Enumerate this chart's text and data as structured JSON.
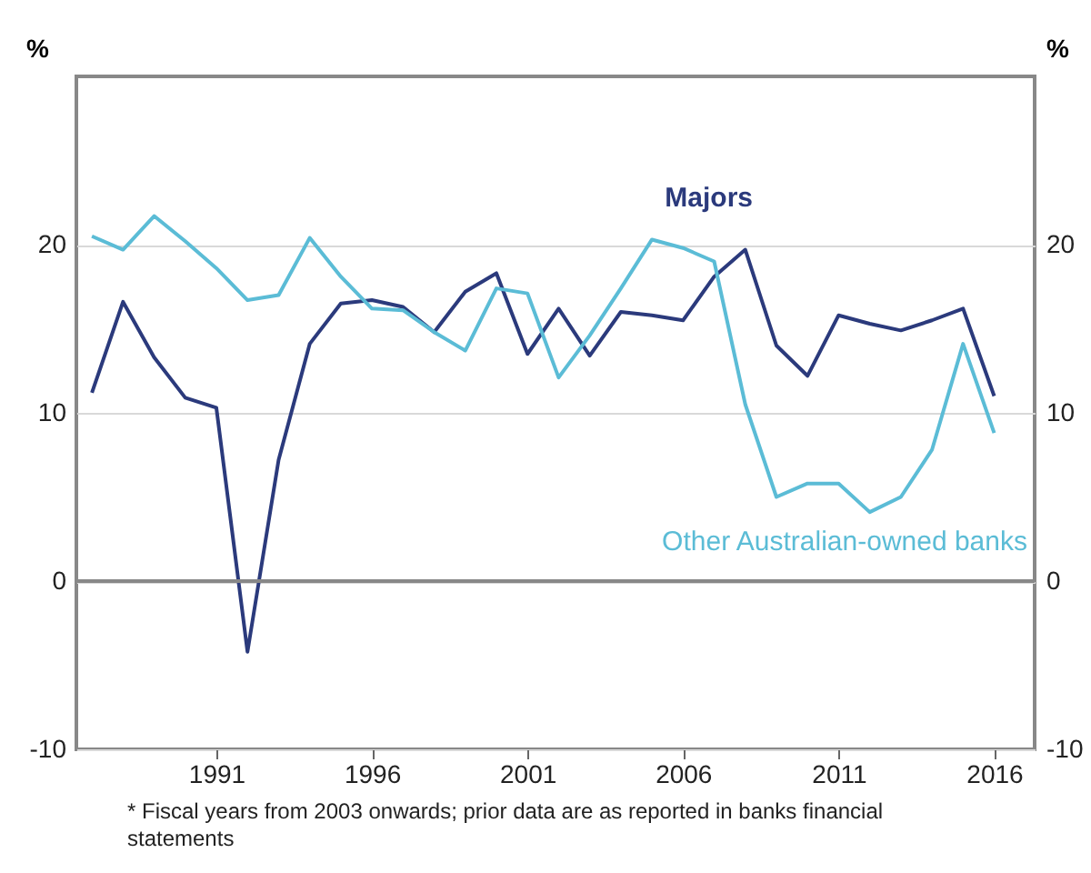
{
  "chart_data": {
    "type": "line",
    "x": [
      1987,
      1988,
      1989,
      1990,
      1991,
      1992,
      1993,
      1994,
      1995,
      1996,
      1997,
      1998,
      1999,
      2000,
      2001,
      2002,
      2003,
      2004,
      2005,
      2006,
      2007,
      2008,
      2009,
      2010,
      2011,
      2012,
      2013,
      2014,
      2015,
      2016
    ],
    "series": [
      {
        "name": "Majors",
        "color": "#2b3a7c",
        "values": [
          11.2,
          16.6,
          13.3,
          10.9,
          10.3,
          -4.2,
          7.2,
          14.1,
          16.5,
          16.7,
          16.3,
          14.8,
          17.2,
          18.3,
          13.5,
          16.2,
          13.4,
          16.0,
          15.8,
          15.5,
          18.1,
          19.7,
          14.0,
          12.2,
          15.8,
          15.3,
          14.9,
          15.5,
          16.2,
          11.0
        ]
      },
      {
        "name": "Other Australian-owned banks",
        "color": "#5bbcd6",
        "values": [
          20.5,
          19.7,
          21.7,
          20.2,
          18.6,
          16.7,
          17.0,
          20.4,
          18.1,
          16.2,
          16.1,
          14.8,
          13.7,
          17.4,
          17.1,
          12.1,
          14.6,
          17.4,
          20.3,
          19.8,
          19.0,
          10.5,
          5.0,
          5.8,
          5.8,
          4.1,
          5.0,
          7.8,
          14.1,
          8.8
        ]
      }
    ],
    "xlim": [
      1986.5,
      2017.3
    ],
    "xticks": [
      1991,
      1996,
      2001,
      2006,
      2011,
      2016
    ],
    "ylim": [
      -10,
      30
    ],
    "yticks": [
      -10,
      0,
      10,
      20
    ],
    "y2lim": [
      -10,
      30
    ],
    "y2ticks": [
      -10,
      0,
      10,
      20
    ],
    "ylabel": "%",
    "y2label": "%",
    "grid": "y",
    "ref_lines": [
      {
        "axis": "y",
        "value": 0,
        "color": "#888888"
      }
    ],
    "annotations": [
      "* Fiscal years from 2003 onwards; prior data are as reported in banks financial statements"
    ]
  }
}
